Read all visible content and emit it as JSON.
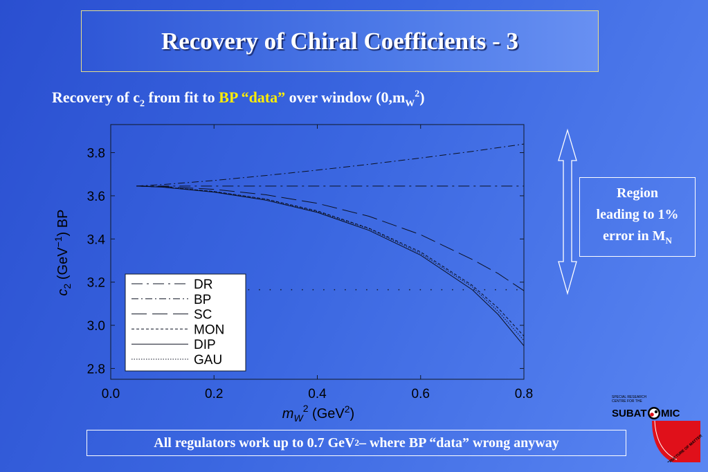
{
  "slide": {
    "title": "Recovery of Chiral Coefficients - 3",
    "subtitle_a": "Recovery of c",
    "subtitle_a_sub": "2",
    "subtitle_b": " from fit to ",
    "subtitle_hl": "BP “data”",
    "subtitle_c": " over window (0,m",
    "subtitle_c_sub": "W",
    "subtitle_c_sup": "2",
    "subtitle_d": ")",
    "region_line1": "Region",
    "region_line2": "leading to 1%",
    "region_line3": "error in M",
    "region_line3_sub": "N",
    "footer_a": "All regulators work up to 0.7 GeV",
    "footer_sup": "2",
    "footer_b": " – where BP “data” wrong anyway",
    "logo_small_text": [
      "SPECIAL RESEARCH",
      "CENTRE FOR THE"
    ],
    "logo_main_left": "SUBAT",
    "logo_main_right": "MIC",
    "logo_arc_text": "STRUCTURE OF MATTER",
    "colors": {
      "title_border": "#e8e08a",
      "highlight": "#ffee00",
      "logo_red": "#e0101a"
    }
  },
  "chart_data": {
    "type": "line",
    "xlabel": "m_W^2 (GeV^2)",
    "ylabel": "c_2 (GeV^-1) BP",
    "xlim": [
      0.0,
      0.8
    ],
    "ylim": [
      2.75,
      3.93
    ],
    "x_ticks": [
      "0.0",
      "0.2",
      "0.4",
      "0.6",
      "0.8"
    ],
    "y_ticks": [
      "2.8",
      "3.0",
      "3.2",
      "3.4",
      "3.6",
      "3.8"
    ],
    "legend_position": "bottom-left",
    "series": [
      {
        "name": "DR",
        "style": "long-dash-dot",
        "x": [
          0.05,
          0.8
        ],
        "y": [
          3.645,
          3.645
        ]
      },
      {
        "name": "BP",
        "style": "dash-dot",
        "x": [
          0.05,
          0.1,
          0.2,
          0.3,
          0.4,
          0.5,
          0.6,
          0.7,
          0.8
        ],
        "y": [
          3.645,
          3.652,
          3.671,
          3.694,
          3.719,
          3.746,
          3.775,
          3.806,
          3.84
        ]
      },
      {
        "name": "SC",
        "style": "long-dash",
        "x": [
          0.05,
          0.1,
          0.2,
          0.3,
          0.4,
          0.5,
          0.6,
          0.7,
          0.75,
          0.8
        ],
        "y": [
          3.645,
          3.643,
          3.63,
          3.605,
          3.565,
          3.505,
          3.42,
          3.305,
          3.24,
          3.16
        ]
      },
      {
        "name": "MON",
        "style": "dashed",
        "x": [
          0.05,
          0.1,
          0.2,
          0.3,
          0.4,
          0.5,
          0.6,
          0.7,
          0.75,
          0.8
        ],
        "y": [
          3.645,
          3.641,
          3.62,
          3.585,
          3.53,
          3.45,
          3.34,
          3.185,
          3.08,
          2.95
        ]
      },
      {
        "name": "DIP",
        "style": "solid",
        "x": [
          0.05,
          0.1,
          0.2,
          0.3,
          0.4,
          0.5,
          0.6,
          0.7,
          0.75,
          0.8
        ],
        "y": [
          3.645,
          3.64,
          3.617,
          3.58,
          3.523,
          3.44,
          3.325,
          3.165,
          3.05,
          2.905
        ]
      },
      {
        "name": "GAU",
        "style": "dotted",
        "x": [
          0.05,
          0.1,
          0.2,
          0.3,
          0.4,
          0.5,
          0.6,
          0.7,
          0.75,
          0.8
        ],
        "y": [
          3.645,
          3.641,
          3.62,
          3.584,
          3.527,
          3.447,
          3.333,
          3.178,
          3.065,
          2.93
        ]
      }
    ],
    "annotations": [
      {
        "type": "reference-line",
        "style": "sparse-dotted",
        "y": 3.165,
        "x": [
          0.1,
          0.8
        ]
      }
    ]
  }
}
